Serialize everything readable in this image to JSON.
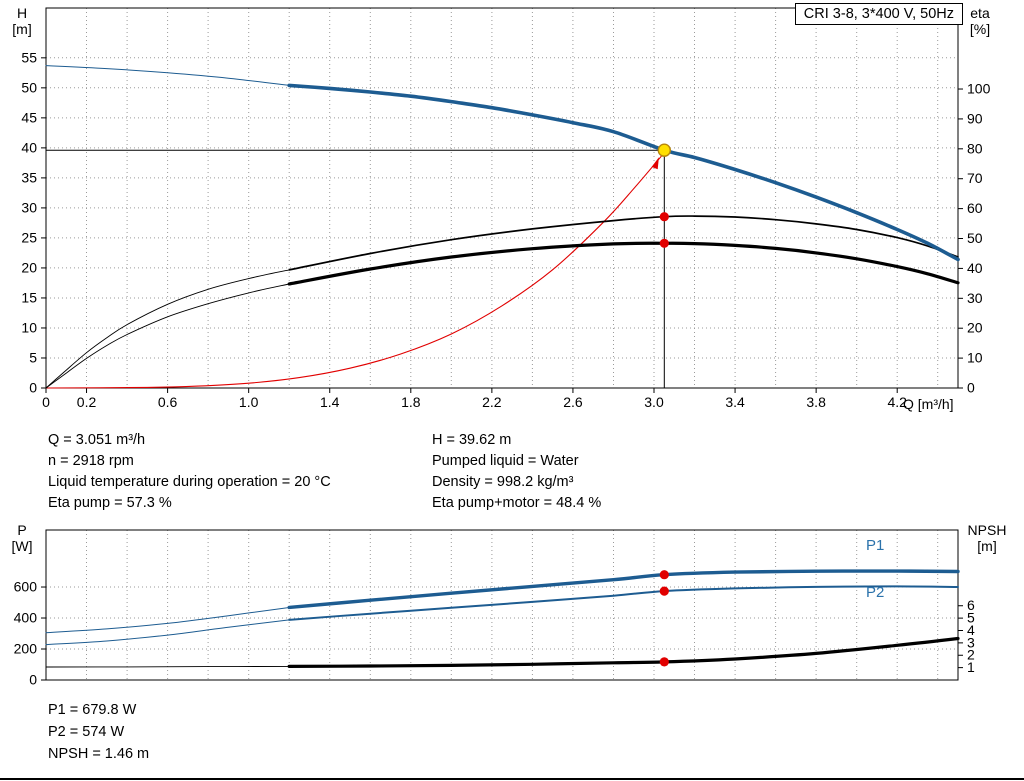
{
  "title_box": {
    "label": "CRI 3-8, 3*400 V, 50Hz"
  },
  "axis_labels": {
    "h_title": "H",
    "h_unit": "[m]",
    "eta_title": "eta",
    "eta_unit": "[%]",
    "q_title": "Q [m³/h]",
    "p_title": "P",
    "p_unit": "[W]",
    "npsh_title": "NPSH",
    "npsh_unit": "[m]"
  },
  "curve_labels": {
    "p1": "P1",
    "p2": "P2"
  },
  "info_block": {
    "left": [
      "Q = 3.051 m³/h",
      "n = 2918 rpm",
      "Liquid temperature during operation = 20 °C",
      "Eta pump = 57.3 %"
    ],
    "right": [
      "H = 39.62 m",
      "Pumped liquid = Water",
      "Density = 998.2 kg/m³",
      "Eta pump+motor = 48.4 %"
    ]
  },
  "result_block": {
    "lines": [
      "P1 = 679.8 W",
      "P2 = 574 W",
      "NPSH = 1.46 m"
    ]
  },
  "colors": {
    "blue": "#1d5c91",
    "black": "#000000",
    "red": "#e10000",
    "yellow": "#ffdf00",
    "grid": "#9a9a9a"
  },
  "chart_data": [
    {
      "type": "line",
      "name": "qh-eta-chart",
      "title": "CRI 3-8, 3*400 V, 50Hz",
      "box": {
        "l": 46,
        "t": 8,
        "r": 958,
        "b": 388
      },
      "x": {
        "min": 0,
        "max": 4.5,
        "label": "Q [m³/h]",
        "grid": [
          0.2,
          0.4,
          0.6,
          0.8,
          1,
          1.2,
          1.4,
          1.6,
          1.8,
          2,
          2.2,
          2.4,
          2.6,
          2.8,
          3,
          3.2,
          3.4,
          3.6,
          3.8,
          4,
          4.2,
          4.4
        ],
        "tick_labels": [
          [
            0,
            "0"
          ],
          [
            0.2,
            "0.2"
          ],
          [
            0.6,
            "0.6"
          ],
          [
            1,
            "1.0"
          ],
          [
            1.4,
            "1.4"
          ],
          [
            1.8,
            "1.8"
          ],
          [
            2.2,
            "2.2"
          ],
          [
            2.6,
            "2.6"
          ],
          [
            3,
            "3.0"
          ],
          [
            3.4,
            "3.4"
          ],
          [
            3.8,
            "3.8"
          ],
          [
            4.2,
            "4.2"
          ]
        ]
      },
      "yl": {
        "min": 0,
        "max": 63.3,
        "label": "H [m]",
        "grid": [
          5,
          10,
          15,
          20,
          25,
          30,
          35,
          40,
          45,
          50,
          55
        ],
        "tick_labels": [
          [
            0,
            "0"
          ],
          [
            5,
            "5"
          ],
          [
            10,
            "10"
          ],
          [
            15,
            "15"
          ],
          [
            20,
            "20"
          ],
          [
            25,
            "25"
          ],
          [
            30,
            "30"
          ],
          [
            35,
            "35"
          ],
          [
            40,
            "40"
          ],
          [
            45,
            "45"
          ],
          [
            50,
            "50"
          ],
          [
            55,
            "55"
          ]
        ]
      },
      "yr": {
        "min": 0,
        "max": 127.1,
        "label": "eta [%]",
        "tick_labels": [
          [
            0,
            "0"
          ],
          [
            10,
            "10"
          ],
          [
            20,
            "20"
          ],
          [
            30,
            "30"
          ],
          [
            40,
            "40"
          ],
          [
            50,
            "50"
          ],
          [
            60,
            "60"
          ],
          [
            70,
            "70"
          ],
          [
            80,
            "80"
          ],
          [
            90,
            "90"
          ],
          [
            100,
            "100"
          ]
        ]
      },
      "series": [
        {
          "name": "duty-vline",
          "axis": "l",
          "color": "black",
          "w": 1,
          "straight": true,
          "pts": [
            [
              3.051,
              0
            ],
            [
              3.051,
              39.62
            ]
          ]
        },
        {
          "name": "duty-hline",
          "axis": "l",
          "color": "black",
          "w": 1,
          "straight": true,
          "pts": [
            [
              0,
              39.62
            ],
            [
              3.051,
              39.62
            ]
          ]
        },
        {
          "name": "system-curve",
          "axis": "l",
          "color": "red",
          "w": 1.1,
          "pts": [
            [
              0,
              0
            ],
            [
              0.5,
              0.1
            ],
            [
              0.75,
              0.32
            ],
            [
              1,
              0.8
            ],
            [
              1.25,
              1.74
            ],
            [
              1.5,
              3.3
            ],
            [
              1.75,
              5.66
            ],
            [
              2,
              9
            ],
            [
              2.25,
              13.7
            ],
            [
              2.5,
              19.7
            ],
            [
              2.75,
              27.6
            ],
            [
              2.9,
              33.2
            ],
            [
              3.051,
              39.2
            ]
          ]
        },
        {
          "name": "eta-pump-curve-lead",
          "axis": "r",
          "color": "black",
          "w": 0.9,
          "pts": [
            [
              0,
              0
            ],
            [
              0.1,
              6
            ],
            [
              0.2,
              11.8
            ],
            [
              0.3,
              16.8
            ],
            [
              0.4,
              21.2
            ],
            [
              0.6,
              28
            ],
            [
              0.8,
              33
            ],
            [
              1,
              36.6
            ],
            [
              1.2,
              39.5
            ]
          ]
        },
        {
          "name": "eta-pump-motor-curve-lead",
          "axis": "r",
          "color": "black",
          "w": 0.9,
          "pts": [
            [
              0,
              0
            ],
            [
              0.1,
              5
            ],
            [
              0.2,
              9.9
            ],
            [
              0.3,
              14.2
            ],
            [
              0.4,
              17.9
            ],
            [
              0.6,
              23.8
            ],
            [
              0.8,
              28.2
            ],
            [
              1,
              31.8
            ],
            [
              1.2,
              34.8
            ]
          ]
        },
        {
          "name": "eta-pump-curve",
          "axis": "r",
          "color": "black",
          "w": 1.7,
          "pts": [
            [
              1.2,
              39.5
            ],
            [
              1.6,
              45
            ],
            [
              2,
              49.6
            ],
            [
              2.4,
              53.2
            ],
            [
              2.8,
              56
            ],
            [
              3.051,
              57.3
            ],
            [
              3.2,
              57.5
            ],
            [
              3.4,
              57.2
            ],
            [
              3.6,
              56.3
            ],
            [
              3.8,
              54.9
            ],
            [
              4,
              53
            ],
            [
              4.2,
              50.3
            ],
            [
              4.35,
              47.5
            ],
            [
              4.5,
              43.8
            ]
          ]
        },
        {
          "name": "eta-pump-motor-curve",
          "axis": "r",
          "color": "black",
          "w": 3.2,
          "pts": [
            [
              1.2,
              34.8
            ],
            [
              1.6,
              39.8
            ],
            [
              2,
              43.8
            ],
            [
              2.4,
              46.6
            ],
            [
              2.8,
              48.2
            ],
            [
              3.051,
              48.4
            ],
            [
              3.2,
              48.3
            ],
            [
              3.4,
              47.7
            ],
            [
              3.6,
              46.7
            ],
            [
              3.8,
              45.2
            ],
            [
              4,
              43.2
            ],
            [
              4.2,
              40.6
            ],
            [
              4.35,
              38.2
            ],
            [
              4.5,
              35.2
            ]
          ]
        },
        {
          "name": "hq-curve-lead",
          "axis": "l",
          "color": "blue",
          "w": 1,
          "pts": [
            [
              0,
              53.7
            ],
            [
              0.3,
              53.2
            ],
            [
              0.6,
              52.5
            ],
            [
              0.9,
              51.6
            ],
            [
              1.2,
              50.4
            ]
          ]
        },
        {
          "name": "hq-curve",
          "axis": "l",
          "color": "blue",
          "w": 3.6,
          "pts": [
            [
              1.2,
              50.4
            ],
            [
              1.4,
              49.9
            ],
            [
              1.6,
              49.3
            ],
            [
              1.8,
              48.6
            ],
            [
              2,
              47.7
            ],
            [
              2.2,
              46.7
            ],
            [
              2.4,
              45.5
            ],
            [
              2.6,
              44.2
            ],
            [
              2.8,
              42.7
            ],
            [
              3.051,
              39.62
            ],
            [
              3.2,
              38.4
            ],
            [
              3.4,
              36.4
            ],
            [
              3.6,
              34.2
            ],
            [
              3.8,
              31.8
            ],
            [
              4,
              29.2
            ],
            [
              4.2,
              26.4
            ],
            [
              4.35,
              24.1
            ],
            [
              4.5,
              21.4
            ]
          ]
        }
      ],
      "markers": [
        {
          "name": "system-curve-arrow",
          "type": "arrow",
          "x": 3.01,
          "v": 37.2,
          "axis": "l",
          "angle": -69,
          "size": 8,
          "color": "red"
        },
        {
          "name": "eta-pump-duty-dot",
          "x": 3.051,
          "v": 57.3,
          "axis": "r",
          "r": 4.6,
          "fill": "red"
        },
        {
          "name": "eta-pump-motor-duty-dot",
          "x": 3.051,
          "v": 48.4,
          "axis": "r",
          "r": 4.6,
          "fill": "red"
        },
        {
          "name": "operating-point-marker",
          "x": 3.051,
          "v": 39.62,
          "axis": "l",
          "r": 6,
          "fill": "yellow",
          "stroke": "#b8860b",
          "sw": 1.4,
          "interactable": true
        }
      ]
    },
    {
      "type": "line",
      "name": "power-npsh-chart",
      "box": {
        "l": 46,
        "t": 530,
        "r": 958,
        "b": 680
      },
      "x": {
        "min": 0,
        "max": 4.5,
        "grid": [
          0.2,
          0.4,
          0.6,
          0.8,
          1,
          1.2,
          1.4,
          1.6,
          1.8,
          2,
          2.2,
          2.4,
          2.6,
          2.8,
          3,
          3.2,
          3.4,
          3.6,
          3.8,
          4,
          4.2,
          4.4
        ],
        "tick_labels": []
      },
      "yl": {
        "min": 0,
        "max": 968,
        "label": "P [W]",
        "grid": [
          200,
          400,
          600
        ],
        "tick_labels": [
          [
            0,
            "0"
          ],
          [
            200,
            "200"
          ],
          [
            400,
            "400"
          ],
          [
            600,
            "600"
          ]
        ]
      },
      "yr": {
        "min": 0,
        "max": 12.12,
        "label": "NPSH [m]",
        "tick_labels": [
          [
            1,
            "1"
          ],
          [
            2,
            "2"
          ],
          [
            3,
            "3"
          ],
          [
            4,
            "4"
          ],
          [
            5,
            "5"
          ],
          [
            6,
            "6"
          ]
        ]
      },
      "series": [
        {
          "name": "p1-curve-lead",
          "axis": "l",
          "color": "blue",
          "w": 1,
          "pts": [
            [
              0,
              305
            ],
            [
              0.3,
              330
            ],
            [
              0.6,
              365
            ],
            [
              0.9,
              415
            ],
            [
              1.2,
              468
            ]
          ]
        },
        {
          "name": "p2-curve-lead",
          "axis": "l",
          "color": "blue",
          "w": 1,
          "pts": [
            [
              0,
              228
            ],
            [
              0.3,
              252
            ],
            [
              0.6,
              290
            ],
            [
              0.9,
              340
            ],
            [
              1.2,
              388
            ]
          ]
        },
        {
          "name": "npsh-curve-lead",
          "axis": "r",
          "color": "black",
          "w": 0.9,
          "pts": [
            [
              0,
              1.05
            ],
            [
              0.4,
              1.06
            ],
            [
              0.8,
              1.08
            ],
            [
              1.2,
              1.1
            ]
          ]
        },
        {
          "name": "p1-curve",
          "axis": "l",
          "color": "blue",
          "w": 3.4,
          "pts": [
            [
              1.2,
              468
            ],
            [
              1.6,
              515
            ],
            [
              2,
              560
            ],
            [
              2.4,
              604
            ],
            [
              2.8,
              647
            ],
            [
              3.051,
              679.8
            ],
            [
              3.4,
              696
            ],
            [
              3.8,
              702
            ],
            [
              4.2,
              703
            ],
            [
              4.5,
              700
            ]
          ]
        },
        {
          "name": "p2-curve",
          "axis": "l",
          "color": "blue",
          "w": 2,
          "pts": [
            [
              1.2,
              388
            ],
            [
              1.6,
              428
            ],
            [
              2,
              466
            ],
            [
              2.4,
              504
            ],
            [
              2.8,
              544
            ],
            [
              3.051,
              574
            ],
            [
              3.4,
              591
            ],
            [
              3.8,
              601
            ],
            [
              4.2,
              604
            ],
            [
              4.5,
              600
            ]
          ]
        },
        {
          "name": "npsh-curve",
          "axis": "r",
          "color": "black",
          "w": 3.2,
          "pts": [
            [
              1.2,
              1.1
            ],
            [
              1.6,
              1.13
            ],
            [
              2,
              1.18
            ],
            [
              2.4,
              1.27
            ],
            [
              2.8,
              1.39
            ],
            [
              3.051,
              1.46
            ],
            [
              3.4,
              1.7
            ],
            [
              3.8,
              2.15
            ],
            [
              4.2,
              2.8
            ],
            [
              4.5,
              3.35
            ]
          ]
        }
      ],
      "markers": [
        {
          "name": "p1-duty-dot",
          "x": 3.051,
          "v": 679.8,
          "axis": "l",
          "r": 4.6,
          "fill": "red"
        },
        {
          "name": "p2-duty-dot",
          "x": 3.051,
          "v": 574,
          "axis": "l",
          "r": 4.6,
          "fill": "red"
        },
        {
          "name": "npsh-duty-dot",
          "x": 3.051,
          "v": 1.46,
          "axis": "r",
          "r": 4.6,
          "fill": "red"
        }
      ]
    }
  ]
}
